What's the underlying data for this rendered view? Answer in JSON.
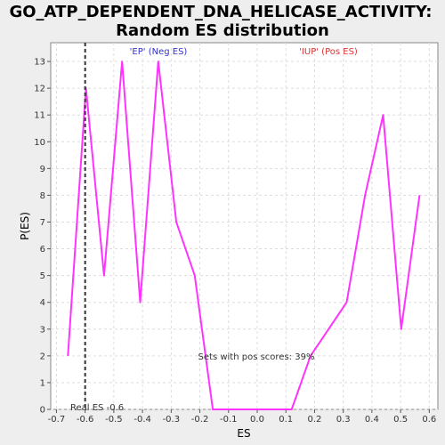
{
  "chart_data": {
    "type": "line",
    "title_line1": "GO_ATP_DEPENDENT_DNA_HELICASE_ACTIVITY:",
    "title_line2": "Random ES distribution",
    "xlabel": "ES",
    "ylabel": "P(ES)",
    "xlim": [
      -0.72,
      0.63
    ],
    "ylim": [
      0,
      13.7
    ],
    "x_ticks": [
      "-0.7",
      "-0.6",
      "-0.5",
      "-0.4",
      "-0.3",
      "-0.2",
      "-0.1",
      "0.0",
      "0.1",
      "0.2",
      "0.3",
      "0.4",
      "0.5",
      "0.6"
    ],
    "x_tick_values": [
      -0.7,
      -0.6,
      -0.5,
      -0.4,
      -0.3,
      -0.2,
      -0.1,
      0.0,
      0.1,
      0.2,
      0.3,
      0.4,
      0.5,
      0.6
    ],
    "y_ticks": [
      "0",
      "1",
      "2",
      "3",
      "4",
      "5",
      "6",
      "7",
      "8",
      "9",
      "10",
      "11",
      "12",
      "13"
    ],
    "y_tick_values": [
      0,
      1,
      2,
      3,
      4,
      5,
      6,
      7,
      8,
      9,
      10,
      11,
      12,
      13
    ],
    "grid": true,
    "series": [
      {
        "color": "#ff33ff",
        "x": [
          -0.66,
          -0.597,
          -0.534,
          -0.471,
          -0.408,
          -0.345,
          -0.282,
          -0.218,
          -0.155,
          -0.092,
          -0.029,
          0.034,
          0.097,
          0.12,
          0.186,
          0.312,
          0.376,
          0.439,
          0.502,
          0.566
        ],
        "y": [
          2,
          12,
          5,
          13,
          4,
          13,
          7,
          5,
          0,
          0,
          0,
          0,
          0,
          0,
          2,
          4,
          8,
          11,
          3,
          8
        ]
      }
    ],
    "real_es": -0.6,
    "real_es_color": "#333333",
    "annotations": {
      "neg_label": "'EP' (Neg ES)",
      "neg_color": "#3333cc",
      "pos_label": "'IUP' (Pos ES)",
      "pos_color": "#dd3333",
      "pos_scores_text": "Sets with pos scores: 39%",
      "real_es_text": "Real ES -0.6"
    },
    "colors": {
      "background": "#eeeeee",
      "plot_background": "#ffffff",
      "grid": "#dddddd"
    }
  }
}
